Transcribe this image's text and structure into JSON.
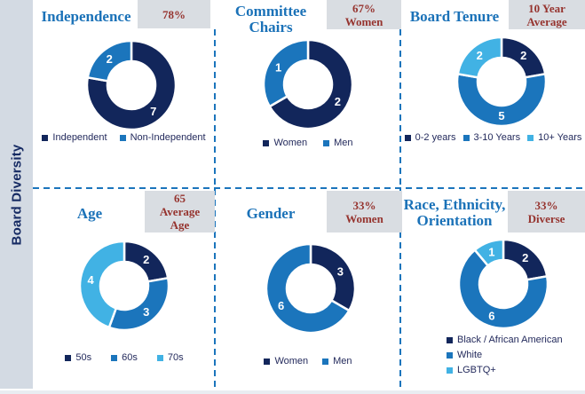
{
  "sidebar": {
    "label": "Board Diversity"
  },
  "colors": {
    "navy": "#12265B",
    "blue": "#1B75BC",
    "sky": "#41B2E4",
    "title_blue": "#1B72B8",
    "badge_text": "#96342F",
    "badge_bg": "#D9DDE2",
    "sidebar_bg": "#D3DAE3",
    "divider_blue": "#1B75BC",
    "legend_text": "#232A5C"
  },
  "chart_data": [
    {
      "type": "donut",
      "title": "Independence",
      "badge_lines": [
        "78%"
      ],
      "legend_position": "bottom-horizontal",
      "segments": [
        {
          "label": "Independent",
          "value": 7,
          "color": "#12265B"
        },
        {
          "label": "Non-Independent",
          "value": 2,
          "color": "#1B75BC"
        }
      ]
    },
    {
      "type": "donut",
      "title": "Committee Chairs",
      "badge_lines": [
        "67%",
        "Women"
      ],
      "legend_position": "bottom-horizontal",
      "segments": [
        {
          "label": "Women",
          "value": 2,
          "color": "#12265B"
        },
        {
          "label": "Men",
          "value": 1,
          "color": "#1B75BC"
        }
      ]
    },
    {
      "type": "donut",
      "title": "Board Tenure",
      "badge_lines": [
        "10 Year",
        "Average"
      ],
      "legend_position": "bottom-horizontal",
      "segments": [
        {
          "label": "0-2 years",
          "value": 2,
          "color": "#12265B"
        },
        {
          "label": "3-10 Years",
          "value": 5,
          "color": "#1B75BC"
        },
        {
          "label": "10+ Years",
          "value": 2,
          "color": "#41B2E4"
        }
      ]
    },
    {
      "type": "donut",
      "title": "Age",
      "badge_lines": [
        "65",
        "Average",
        "Age"
      ],
      "legend_position": "bottom-horizontal",
      "segments": [
        {
          "label": "50s",
          "value": 2,
          "color": "#12265B"
        },
        {
          "label": "60s",
          "value": 3,
          "color": "#1B75BC"
        },
        {
          "label": "70s",
          "value": 4,
          "color": "#41B2E4"
        }
      ]
    },
    {
      "type": "donut",
      "title": "Gender",
      "badge_lines": [
        "33%",
        "Women"
      ],
      "legend_position": "bottom-horizontal",
      "segments": [
        {
          "label": "Women",
          "value": 3,
          "color": "#12265B"
        },
        {
          "label": "Men",
          "value": 6,
          "color": "#1B75BC"
        }
      ]
    },
    {
      "type": "donut",
      "title": "Race, Ethnicity, Orientation",
      "badge_lines": [
        "33%",
        "Diverse"
      ],
      "legend_position": "bottom-vertical",
      "segments": [
        {
          "label": "Black / African American",
          "value": 2,
          "color": "#12265B"
        },
        {
          "label": "White",
          "value": 6,
          "color": "#1B75BC"
        },
        {
          "label": "LGBTQ+",
          "value": 1,
          "color": "#41B2E4"
        }
      ]
    }
  ]
}
